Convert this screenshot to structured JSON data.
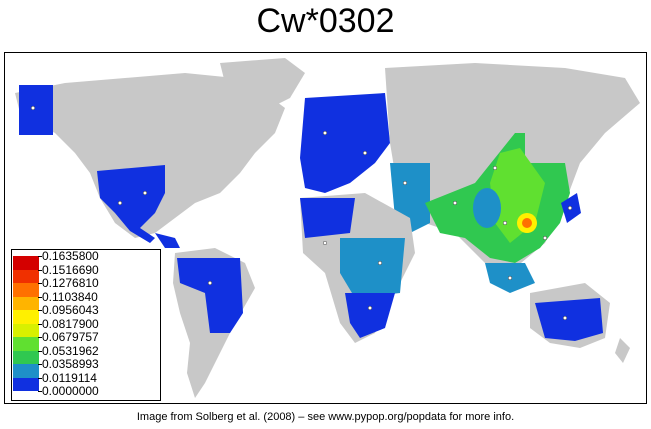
{
  "title": "Cw*0302",
  "footer": "Image from Solberg et al. (2008) – see www.pypop.org/popdata for more info.",
  "legend": {
    "labels": [
      "0.1635800",
      "0.1516690",
      "0.1276810",
      "0.1103840",
      "0.0956043",
      "0.0817900",
      "0.0679757",
      "0.0531962",
      "0.0358993",
      "0.0119114",
      "0.0000000"
    ],
    "colors": [
      "#d40000",
      "#f03000",
      "#ff7000",
      "#ffb400",
      "#fff000",
      "#d8f000",
      "#60e030",
      "#30c850",
      "#1e90c8",
      "#1030e0"
    ]
  },
  "colors": {
    "land": "#c8c8c8",
    "ocean": "#ffffff",
    "low": "#1030e0",
    "mid_low": "#1e90c8",
    "mid": "#30c850",
    "mid_high": "#60e030",
    "high": "#fff000",
    "peak": "#ff7000",
    "sample_point": "#ffffff"
  }
}
